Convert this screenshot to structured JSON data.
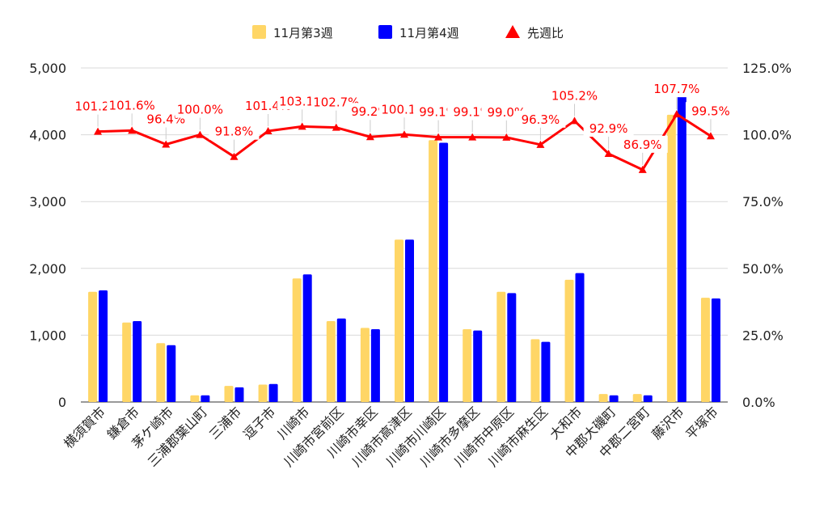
{
  "chart_data": {
    "type": "bar",
    "categories": [
      "横須賀市",
      "鎌倉市",
      "茅ケ崎市",
      "三浦郡葉山町",
      "三浦市",
      "逗子市",
      "川崎市",
      "川崎市宮前区",
      "川崎市幸区",
      "川崎市高津区",
      "川崎市川崎区",
      "川崎市多摩区",
      "川崎市中原区",
      "川崎市麻生区",
      "大和市",
      "中郡大磯町",
      "中郡二宮町",
      "藤沢市",
      "平塚市"
    ],
    "series": [
      {
        "name": "11月第3週",
        "kind": "bar",
        "axis": "left",
        "color": "#FFD666",
        "values": [
          1650,
          1190,
          880,
          100,
          240,
          260,
          1850,
          1210,
          1110,
          2430,
          3920,
          1090,
          1650,
          940,
          1830,
          120,
          120,
          4300,
          1560
        ]
      },
      {
        "name": "11月第4週",
        "kind": "bar",
        "axis": "left",
        "color": "#0000FF",
        "values": [
          1670,
          1210,
          850,
          100,
          220,
          270,
          1910,
          1250,
          1090,
          2430,
          3880,
          1070,
          1630,
          900,
          1930,
          100,
          100,
          4630,
          1550
        ]
      },
      {
        "name": "先週比",
        "kind": "line",
        "axis": "right",
        "color": "#FF0000",
        "values": [
          101.2,
          101.6,
          96.4,
          100.0,
          91.8,
          101.4,
          103.1,
          102.7,
          99.2,
          100.1,
          99.1,
          99.1,
          99.0,
          96.3,
          105.2,
          92.9,
          86.9,
          107.7,
          99.5
        ],
        "labels": [
          "101.2%",
          "101.6%",
          "96.4%",
          "100.0%",
          "91.8%",
          "101.4%",
          "103.1%",
          "102.7%",
          "99.2%",
          "100.1%",
          "99.1%",
          "99.1%",
          "99.0%",
          "96.3%",
          "105.2%",
          "92.9%",
          "86.9%",
          "107.7%",
          "99.5%"
        ]
      }
    ],
    "y_left": {
      "min": 0,
      "max": 5000,
      "ticks": [
        "0",
        "1,000",
        "2,000",
        "3,000",
        "4,000",
        "5,000"
      ]
    },
    "y_right": {
      "min": 0,
      "max": 125,
      "ticks": [
        "0.0%",
        "25.0%",
        "50.0%",
        "75.0%",
        "100.0%",
        "125.0%"
      ]
    },
    "grid": true,
    "legend_position": "top"
  }
}
